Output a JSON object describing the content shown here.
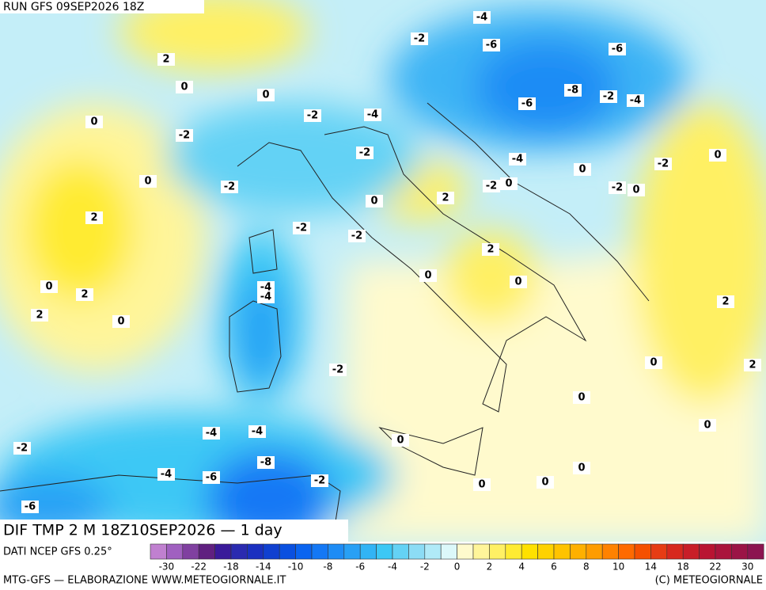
{
  "header": {
    "run": "RUN GFS 09SEP2026 18Z"
  },
  "map": {
    "contour_labels": [
      -4,
      -2,
      -6,
      -6,
      2,
      0,
      0,
      -8,
      -2,
      -4,
      -6,
      -2,
      -4,
      0,
      -2,
      -2,
      0,
      -4,
      -2,
      0,
      0,
      -2,
      -2,
      0,
      -2,
      0,
      2,
      0,
      2,
      -2,
      -2,
      2,
      0,
      0,
      0,
      -4,
      -4,
      2,
      2,
      2,
      0,
      0,
      2,
      -2,
      0,
      0,
      -4,
      -4,
      0,
      -2,
      -8,
      0,
      -4,
      -6,
      -2,
      0,
      0,
      -6
    ]
  },
  "legend": {
    "title": "DIF TMP 2 M 18Z10SEP2026 — 1 day",
    "source": "DATI NCEP GFS 0.25°",
    "colors": [
      "#c080d0",
      "#a060c0",
      "#8040a0",
      "#602080",
      "#3a1a9a",
      "#2a2ab0",
      "#1a30c0",
      "#1040d0",
      "#0a50e0",
      "#0a64f0",
      "#1478f5",
      "#1e8cf5",
      "#28a0f5",
      "#32b4f5",
      "#3cc8f5",
      "#64d2f5",
      "#8cdcf5",
      "#b0eaf8",
      "#dcf8fa",
      "#fffacd",
      "#fff59a",
      "#fff064",
      "#ffeb32",
      "#ffe100",
      "#ffd200",
      "#ffc300",
      "#ffb000",
      "#ff9c00",
      "#ff8200",
      "#ff6a00",
      "#f55000",
      "#e63c14",
      "#d7281e",
      "#c81e28",
      "#b91432",
      "#aa143c",
      "#9b1446",
      "#8c1450"
    ],
    "ticks": [
      -30,
      -22,
      -18,
      -14,
      -10,
      -8,
      -6,
      -4,
      -2,
      0,
      2,
      4,
      6,
      8,
      10,
      14,
      18,
      22,
      30
    ]
  },
  "footer": {
    "left": "MTG-GFS — ELABORAZIONE WWW.METEOGIORNALE.IT",
    "right": "(C) METEOGIORNALE"
  }
}
